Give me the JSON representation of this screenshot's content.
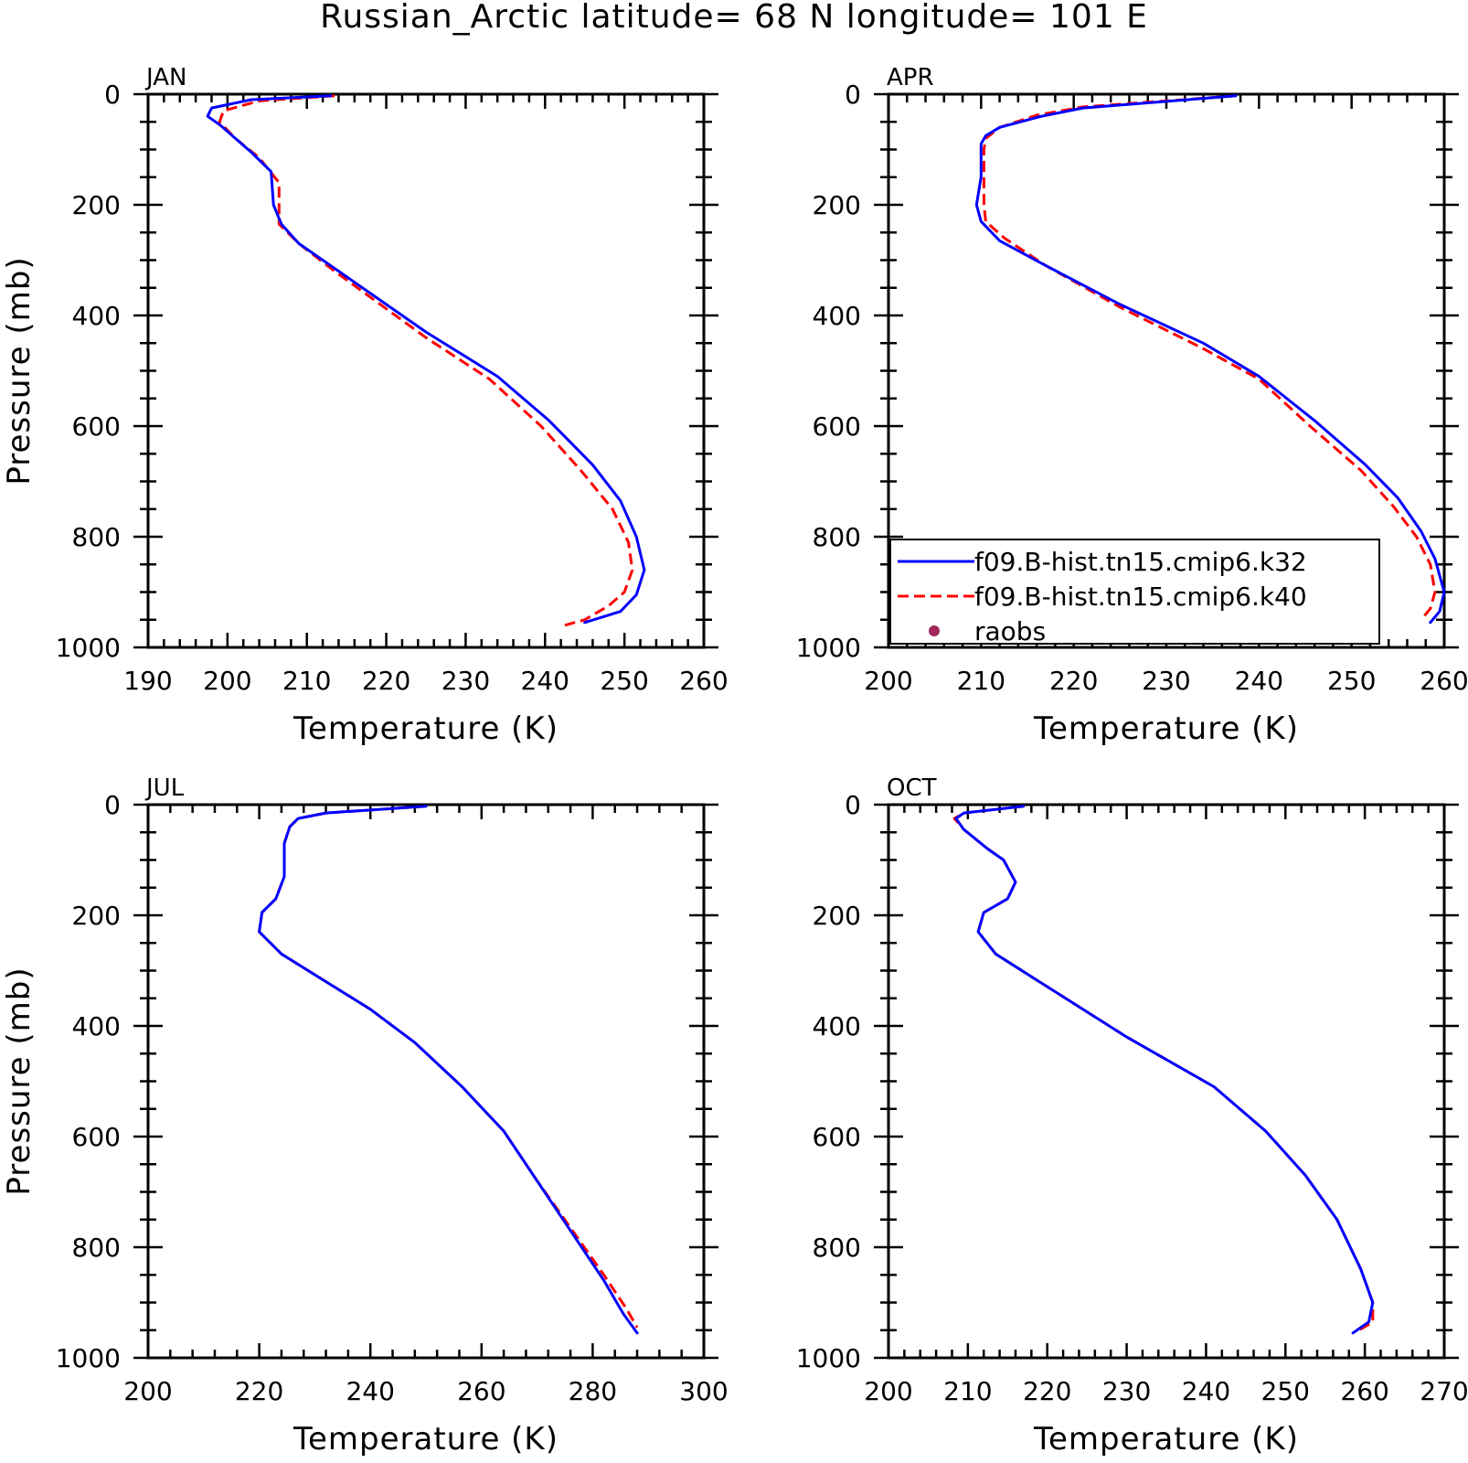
{
  "title": "Russian_Arctic  latitude= 68 N longitude= 101 E",
  "legend": {
    "entries": [
      {
        "label": "f09.B-hist.tn15.cmip6.k32",
        "color": "#0000ff",
        "style": "solid"
      },
      {
        "label": "f09.B-hist.tn15.cmip6.k40",
        "color": "#ff0000",
        "style": "dashed"
      },
      {
        "label": "raobs",
        "color": "#a0285a",
        "style": "marker"
      }
    ]
  },
  "chart_data": [
    {
      "type": "line",
      "panel": "JAN",
      "xlabel": "Temperature (K)",
      "ylabel": "Pressure (mb)",
      "xlim": [
        190,
        260
      ],
      "ylim": [
        1000,
        0
      ],
      "xticks": [
        "190",
        "200",
        "210",
        "220",
        "230",
        "240",
        "250",
        "260"
      ],
      "yticks": [
        "0",
        "200",
        "400",
        "600",
        "800",
        "1000"
      ],
      "series": [
        {
          "name": "f09.B-hist.tn15.cmip6.k32",
          "color": "#0000ff",
          "style": "solid",
          "points": [
            [
              213,
              3
            ],
            [
              203,
              10
            ],
            [
              198,
              25
            ],
            [
              197.5,
              40
            ],
            [
              199,
              55
            ],
            [
              203,
              105
            ],
            [
              205.5,
              140
            ],
            [
              205.8,
              200
            ],
            [
              206.8,
              235
            ],
            [
              209,
              270
            ],
            [
              214,
              320
            ],
            [
              225,
              430
            ],
            [
              234,
              510
            ],
            [
              240.5,
              590
            ],
            [
              246,
              670
            ],
            [
              249.5,
              735
            ],
            [
              251.5,
              800
            ],
            [
              252.5,
              860
            ],
            [
              251.5,
              905
            ],
            [
              249.5,
              935
            ],
            [
              245,
              955
            ]
          ]
        },
        {
          "name": "f09.B-hist.tn15.cmip6.k40",
          "color": "#ff0000",
          "style": "dashed",
          "points": [
            [
              213.5,
              3
            ],
            [
              204,
              12
            ],
            [
              199.5,
              30
            ],
            [
              199,
              50
            ],
            [
              201,
              80
            ],
            [
              204,
              115
            ],
            [
              206.5,
              160
            ],
            [
              206.5,
              235
            ],
            [
              209,
              270
            ],
            [
              213.5,
              320
            ],
            [
              225,
              440
            ],
            [
              233,
              515
            ],
            [
              239.5,
              600
            ],
            [
              244.5,
              680
            ],
            [
              248.5,
              750
            ],
            [
              250.5,
              810
            ],
            [
              251,
              860
            ],
            [
              250,
              900
            ],
            [
              248,
              925
            ],
            [
              245,
              950
            ],
            [
              242.5,
              960
            ]
          ]
        }
      ]
    },
    {
      "type": "line",
      "panel": "APR",
      "xlabel": "Temperature (K)",
      "ylabel": "",
      "xlim": [
        200,
        260
      ],
      "ylim": [
        1000,
        0
      ],
      "xticks": [
        "200",
        "210",
        "220",
        "230",
        "240",
        "250",
        "260"
      ],
      "yticks": [
        "0",
        "200",
        "400",
        "600",
        "800",
        "1000"
      ],
      "series": [
        {
          "name": "f09.B-hist.tn15.cmip6.k32",
          "color": "#0000ff",
          "style": "solid",
          "points": [
            [
              237.5,
              3
            ],
            [
              221,
              25
            ],
            [
              216.5,
              40
            ],
            [
              212,
              60
            ],
            [
              210.5,
              75
            ],
            [
              210,
              90
            ],
            [
              210,
              150
            ],
            [
              209.5,
              200
            ],
            [
              210,
              230
            ],
            [
              212,
              265
            ],
            [
              217,
              310
            ],
            [
              225,
              380
            ],
            [
              234,
              450
            ],
            [
              240,
              510
            ],
            [
              246,
              590
            ],
            [
              251.5,
              670
            ],
            [
              255,
              730
            ],
            [
              257.5,
              790
            ],
            [
              259,
              840
            ],
            [
              260,
              900
            ],
            [
              259.5,
              935
            ],
            [
              258.5,
              955
            ]
          ]
        },
        {
          "name": "f09.B-hist.tn15.cmip6.k40",
          "color": "#ff0000",
          "style": "dashed",
          "points": [
            [
              237.5,
              3
            ],
            [
              221,
              23
            ],
            [
              216,
              38
            ],
            [
              212,
              60
            ],
            [
              210.5,
              80
            ],
            [
              210.3,
              100
            ],
            [
              210.3,
              200
            ],
            [
              210.5,
              230
            ],
            [
              212.5,
              260
            ],
            [
              217,
              310
            ],
            [
              225,
              385
            ],
            [
              234,
              460
            ],
            [
              240,
              515
            ],
            [
              245.5,
              600
            ],
            [
              251,
              680
            ],
            [
              254.5,
              745
            ],
            [
              257,
              800
            ],
            [
              258.5,
              850
            ],
            [
              259,
              900
            ],
            [
              258.5,
              930
            ],
            [
              257.5,
              950
            ]
          ]
        }
      ]
    },
    {
      "type": "line",
      "panel": "JUL",
      "xlabel": "Temperature (K)",
      "ylabel": "Pressure (mb)",
      "xlim": [
        200,
        300
      ],
      "ylim": [
        1000,
        0
      ],
      "xticks": [
        "200",
        "220",
        "240",
        "260",
        "280",
        "300"
      ],
      "yticks": [
        "0",
        "200",
        "400",
        "600",
        "800",
        "1000"
      ],
      "series": [
        {
          "name": "f09.B-hist.tn15.cmip6.k32",
          "color": "#0000ff",
          "style": "solid",
          "points": [
            [
              250,
              3
            ],
            [
              232,
              15
            ],
            [
              227,
              25
            ],
            [
              225.5,
              40
            ],
            [
              224.5,
              70
            ],
            [
              224.5,
              130
            ],
            [
              223,
              170
            ],
            [
              220.5,
              195
            ],
            [
              220,
              230
            ],
            [
              224,
              270
            ],
            [
              232,
              320
            ],
            [
              240,
              370
            ],
            [
              248,
              430
            ],
            [
              256.5,
              510
            ],
            [
              264,
              590
            ],
            [
              270,
              680
            ],
            [
              276,
              770
            ],
            [
              282,
              860
            ],
            [
              285.5,
              920
            ],
            [
              288,
              955
            ]
          ]
        },
        {
          "name": "f09.B-hist.tn15.cmip6.k40",
          "color": "#ff0000",
          "style": "dashed",
          "points": [
            [
              250,
              3
            ],
            [
              232,
              15
            ],
            [
              227,
              25
            ],
            [
              225.5,
              40
            ],
            [
              224.5,
              70
            ],
            [
              224.5,
              130
            ],
            [
              223,
              170
            ],
            [
              220.5,
              195
            ],
            [
              220,
              230
            ],
            [
              224,
              270
            ],
            [
              232,
              320
            ],
            [
              240,
              370
            ],
            [
              248,
              430
            ],
            [
              256.5,
              510
            ],
            [
              264,
              590
            ],
            [
              270,
              680
            ],
            [
              276,
              765
            ],
            [
              282,
              850
            ],
            [
              286,
              910
            ],
            [
              288,
              945
            ]
          ]
        }
      ]
    },
    {
      "type": "line",
      "panel": "OCT",
      "xlabel": "Temperature (K)",
      "ylabel": "",
      "xlim": [
        200,
        270
      ],
      "ylim": [
        1000,
        0
      ],
      "xticks": [
        "200",
        "210",
        "220",
        "230",
        "240",
        "250",
        "260",
        "270"
      ],
      "yticks": [
        "0",
        "200",
        "400",
        "600",
        "800",
        "1000"
      ],
      "series": [
        {
          "name": "f09.B-hist.tn15.cmip6.k32",
          "color": "#0000ff",
          "style": "solid",
          "points": [
            [
              217,
              3
            ],
            [
              209.5,
              15
            ],
            [
              208.5,
              25
            ],
            [
              209.5,
              45
            ],
            [
              212.5,
              80
            ],
            [
              214.5,
              100
            ],
            [
              216,
              140
            ],
            [
              215,
              170
            ],
            [
              212,
              195
            ],
            [
              211.3,
              230
            ],
            [
              213.5,
              270
            ],
            [
              219,
              320
            ],
            [
              230,
              420
            ],
            [
              241,
              510
            ],
            [
              247.5,
              590
            ],
            [
              252.5,
              670
            ],
            [
              256.5,
              750
            ],
            [
              259.5,
              840
            ],
            [
              261,
              900
            ],
            [
              260.5,
              935
            ],
            [
              258.5,
              955
            ]
          ]
        },
        {
          "name": "f09.B-hist.tn15.cmip6.k40",
          "color": "#ff0000",
          "style": "dashed",
          "points": [
            [
              217,
              3
            ],
            [
              209.5,
              15
            ],
            [
              208.3,
              25
            ],
            [
              209.5,
              45
            ],
            [
              212.5,
              80
            ],
            [
              214.5,
              100
            ],
            [
              216,
              140
            ],
            [
              215,
              170
            ],
            [
              212,
              195
            ],
            [
              211.3,
              230
            ],
            [
              213.5,
              270
            ],
            [
              219,
              320
            ],
            [
              230,
              420
            ],
            [
              241,
              510
            ],
            [
              247.5,
              590
            ],
            [
              252.5,
              670
            ],
            [
              256.5,
              750
            ],
            [
              259.5,
              840
            ],
            [
              261,
              900
            ],
            [
              261,
              935
            ],
            [
              259,
              952
            ]
          ]
        }
      ]
    }
  ]
}
